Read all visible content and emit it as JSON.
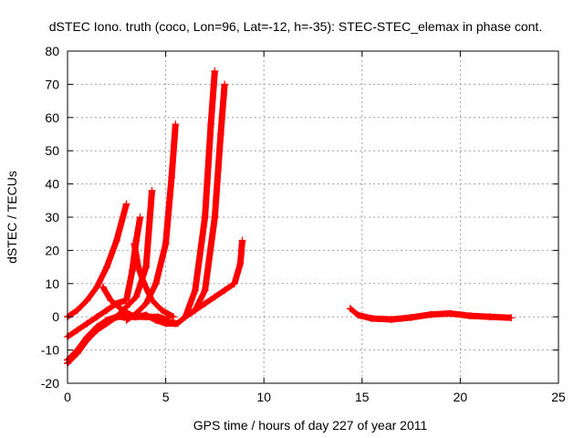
{
  "chart_data": {
    "type": "scatter",
    "title": "dSTEC Iono. truth (coco, Lon=96, Lat=-12, h=-35): STEC-STEC_elemax in phase cont.",
    "xlabel": "GPS time / hours of day 227 of year 2011",
    "ylabel": "dSTEC  / TECUs",
    "xlim": [
      0,
      25
    ],
    "ylim": [
      -20,
      80
    ],
    "x_ticks": [
      0,
      5,
      10,
      15,
      20,
      25
    ],
    "y_ticks": [
      -20,
      -10,
      0,
      10,
      20,
      30,
      40,
      50,
      60,
      70,
      80
    ],
    "grid": true,
    "marker": "+",
    "colors": {
      "series": "#ff0000",
      "grid": "#a0a0a0",
      "axis": "#000000"
    },
    "series": [
      {
        "x": [
          0,
          0.5,
          1.0,
          1.5,
          2.0,
          2.5,
          3.0
        ],
        "y": [
          0,
          2,
          5,
          9,
          15,
          23,
          34
        ]
      },
      {
        "x": [
          0,
          0.5,
          1.0,
          1.5,
          2.0,
          2.5,
          3.0,
          3.3,
          3.5,
          3.7
        ],
        "y": [
          -6,
          -4,
          -2,
          0,
          2,
          4,
          5,
          14,
          23,
          30
        ]
      },
      {
        "x": [
          0,
          0.5,
          1.0,
          1.5,
          2.0,
          2.5,
          3.0,
          3.5,
          4.0,
          4.3
        ],
        "y": [
          -14,
          -11,
          -7,
          -4,
          -2,
          0,
          3,
          6,
          15,
          38
        ]
      },
      {
        "x": [
          0,
          0.5,
          1.0,
          1.5,
          2.0,
          2.5,
          3.0,
          3.5,
          4.0,
          4.5,
          5.0,
          5.5
        ],
        "y": [
          -13,
          -10,
          -6,
          -3,
          -1,
          0,
          0,
          0,
          0.5,
          -1,
          -2,
          -2
        ]
      },
      {
        "x": [
          1.8,
          2.2,
          2.8,
          3.4,
          4.0,
          4.6,
          5.2
        ],
        "y": [
          9,
          5,
          2,
          0,
          0,
          0,
          -1
        ]
      },
      {
        "x": [
          3.4,
          3.6,
          3.9,
          4.3,
          4.8,
          5.4
        ],
        "y": [
          22,
          15,
          10,
          5,
          2,
          0
        ]
      },
      {
        "x": [
          3.0,
          3.5,
          4.0,
          4.5,
          5.0,
          5.3,
          5.5
        ],
        "y": [
          -1,
          1,
          4,
          10,
          22,
          42,
          58
        ]
      },
      {
        "x": [
          5.4,
          5.6,
          6.0,
          6.5,
          7.0,
          7.3,
          7.5
        ],
        "y": [
          -2,
          -2,
          0,
          8,
          30,
          58,
          74
        ]
      },
      {
        "x": [
          5.6,
          6.0,
          6.5,
          7.0,
          7.5,
          7.8,
          8.0
        ],
        "y": [
          -2,
          0,
          2,
          8,
          30,
          55,
          70
        ]
      },
      {
        "x": [
          6.0,
          6.5,
          7.0,
          7.5,
          8.0,
          8.5,
          8.8,
          8.9
        ],
        "y": [
          0,
          2,
          4,
          6,
          8,
          10,
          16,
          23
        ]
      },
      {
        "x": [
          14.4,
          14.8,
          15.5,
          16.5,
          17.5,
          18.5,
          19.5,
          20.5,
          21.5,
          22.6
        ],
        "y": [
          2.5,
          0.5,
          -0.5,
          -0.8,
          -0.2,
          0.7,
          1,
          0.3,
          0,
          -0.3
        ]
      }
    ]
  }
}
